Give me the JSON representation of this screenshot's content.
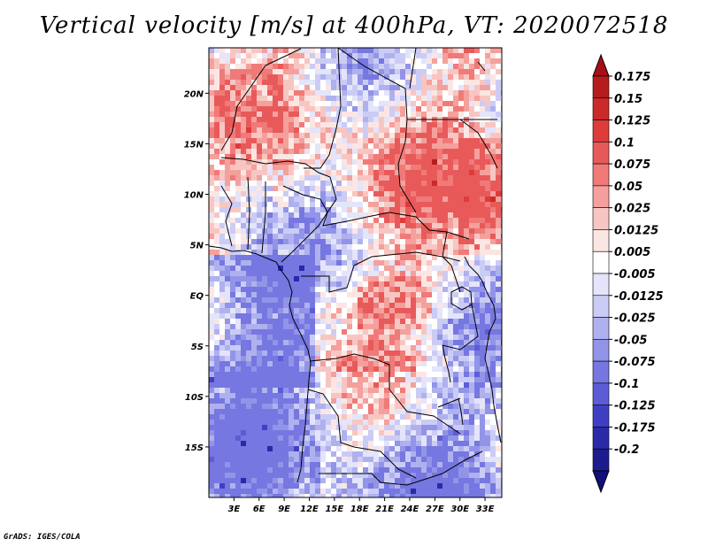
{
  "chart_data": {
    "type": "heatmap",
    "title": "Vertical velocity [m/s] at 400hPa, VT: 2020072518",
    "xlabel": "",
    "ylabel": "",
    "x_ticks": [
      "3E",
      "6E",
      "9E",
      "12E",
      "15E",
      "18E",
      "21E",
      "24E",
      "27E",
      "30E",
      "33E"
    ],
    "y_ticks": [
      "20N",
      "15N",
      "10N",
      "5N",
      "EQ",
      "5S",
      "10S",
      "15S"
    ],
    "lon_range": [
      0,
      35
    ],
    "lat_range": [
      -20,
      24.5
    ],
    "colorbar_levels": [
      "0.175",
      "0.15",
      "0.125",
      "0.1",
      "0.075",
      "0.05",
      "0.025",
      "0.0125",
      "0.005",
      "-0.005",
      "-0.0125",
      "-0.025",
      "-0.05",
      "-0.075",
      "-0.1",
      "-0.125",
      "-0.175",
      "-0.2"
    ],
    "colorbar_colors": [
      "#a50f15",
      "#b71c1c",
      "#cb2a2a",
      "#de3b3b",
      "#e85a5a",
      "#f07a78",
      "#f4a09c",
      "#f8c6c2",
      "#fce6e3",
      "#ffffff",
      "#e4e4fa",
      "#cbccf5",
      "#afb1ef",
      "#9294e8",
      "#7677e0",
      "#5c5cd6",
      "#3f3fc4",
      "#2a2aa8",
      "#1c1c8e",
      "#120f78"
    ]
  },
  "credit": "GrADS: IGES/COLA"
}
